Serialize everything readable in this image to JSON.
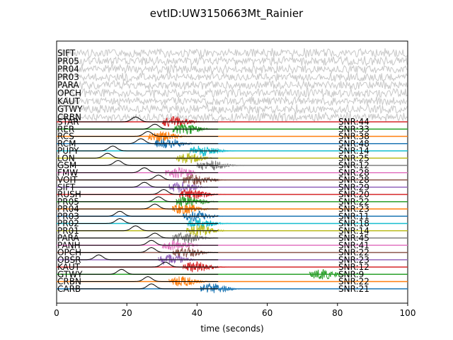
{
  "chart_data": {
    "type": "line",
    "title": "evtID:UW3150663Mt_Rainier",
    "xlabel": "time (seconds)",
    "ylabel": "",
    "xlim": [
      0,
      100
    ],
    "xticks": [
      "0",
      "20",
      "40",
      "60",
      "80",
      "100"
    ],
    "grid": false,
    "noise_traces": [
      {
        "name": "SIFT"
      },
      {
        "name": "PR05"
      },
      {
        "name": "PR04"
      },
      {
        "name": "PR03"
      },
      {
        "name": "PARA"
      },
      {
        "name": "OPCH"
      },
      {
        "name": "KAUT"
      },
      {
        "name": "GTWY"
      },
      {
        "name": "CRBN"
      }
    ],
    "series": [
      {
        "name": "STAR",
        "snr": "SNR:44",
        "color": "#d62728",
        "peak_s": 22.5,
        "onset_s": 30
      },
      {
        "name": "RER",
        "snr": "SNR:33",
        "color": "#2ca02c",
        "peak_s": 28,
        "onset_s": 33
      },
      {
        "name": "RCS",
        "snr": "SNR:38",
        "color": "#ff7f0e",
        "peak_s": 26,
        "onset_s": 26
      },
      {
        "name": "RCM",
        "snr": "SNR:48",
        "color": "#1f77b4",
        "peak_s": 24,
        "onset_s": 28
      },
      {
        "name": "PUPY",
        "snr": "SNR:14",
        "color": "#17becf",
        "peak_s": 16,
        "onset_s": 38
      },
      {
        "name": "LON",
        "snr": "SNR:25",
        "color": "#bcbd22",
        "peak_s": 14.5,
        "onset_s": 34
      },
      {
        "name": "GSM",
        "snr": "SNR:12",
        "color": "#7f7f7f",
        "peak_s": 17.5,
        "onset_s": 40
      },
      {
        "name": "FMW",
        "snr": "SNR:28",
        "color": "#e377c2",
        "peak_s": 25,
        "onset_s": 31
      },
      {
        "name": "VOIT",
        "snr": "SNR:28",
        "color": "#8c564b",
        "peak_s": 29,
        "onset_s": 36
      },
      {
        "name": "SIFT",
        "snr": "SNR:29",
        "color": "#9467bd",
        "peak_s": 25,
        "onset_s": 32
      },
      {
        "name": "RUSH",
        "snr": "SNR:20",
        "color": "#d62728",
        "peak_s": 30.5,
        "onset_s": 35
      },
      {
        "name": "PR05",
        "snr": "SNR:22",
        "color": "#2ca02c",
        "peak_s": 29,
        "onset_s": 34
      },
      {
        "name": "PR04",
        "snr": "SNR:23",
        "color": "#ff7f0e",
        "peak_s": 28,
        "onset_s": 33
      },
      {
        "name": "PR03",
        "snr": "SNR:11",
        "color": "#1f77b4",
        "peak_s": 18,
        "onset_s": 36
      },
      {
        "name": "PR02",
        "snr": "SNR:18",
        "color": "#17becf",
        "peak_s": 18,
        "onset_s": 37
      },
      {
        "name": "PR01",
        "snr": "SNR:14",
        "color": "#bcbd22",
        "peak_s": 22.5,
        "onset_s": 37
      },
      {
        "name": "PARA",
        "snr": "SNR:45",
        "color": "#7f7f7f",
        "peak_s": 28,
        "onset_s": 33
      },
      {
        "name": "PANH",
        "snr": "SNR:41",
        "color": "#e377c2",
        "peak_s": 27,
        "onset_s": 30
      },
      {
        "name": "OPCH",
        "snr": "SNR:22",
        "color": "#8c564b",
        "peak_s": 27,
        "onset_s": 33
      },
      {
        "name": "OBSR",
        "snr": "SNR:23",
        "color": "#9467bd",
        "peak_s": 12,
        "onset_s": 29
      },
      {
        "name": "KAUT",
        "snr": "SNR:12",
        "color": "#d62728",
        "peak_s": 31,
        "onset_s": 36
      },
      {
        "name": "GTWY",
        "snr": "SNR:9",
        "color": "#2ca02c",
        "peak_s": 18.5,
        "onset_s": 72
      },
      {
        "name": "CRBN",
        "snr": "SNR:22",
        "color": "#ff7f0e",
        "peak_s": 26,
        "onset_s": 32
      },
      {
        "name": "CARB",
        "snr": "SNR:21",
        "color": "#1f77b4",
        "peak_s": 27,
        "onset_s": 41
      }
    ]
  }
}
